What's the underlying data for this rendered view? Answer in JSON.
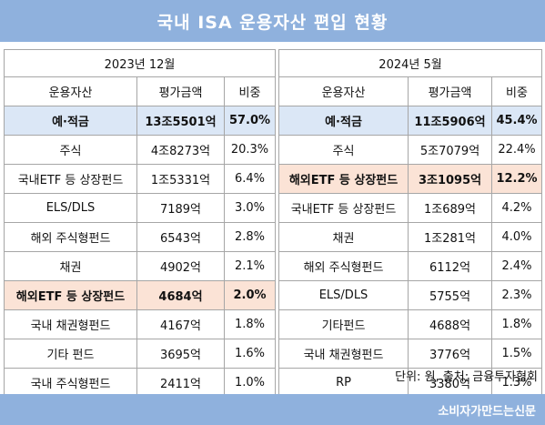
{
  "title": "국내 ISA 운용자산 편입 현황",
  "left": {
    "period": "2023년 12월",
    "headers": [
      "운용자산",
      "평가금액",
      "비중"
    ],
    "rows": [
      {
        "asset": "예·적금",
        "amount": "13조5501억",
        "share": "57.0%",
        "highlight": "blue"
      },
      {
        "asset": "주식",
        "amount": "4조8273억",
        "share": "20.3%",
        "highlight": ""
      },
      {
        "asset": "국내ETF 등 상장펀드",
        "amount": "1조5331억",
        "share": "6.4%",
        "highlight": ""
      },
      {
        "asset": "ELS/DLS",
        "amount": "7189억",
        "share": "3.0%",
        "highlight": ""
      },
      {
        "asset": "해외 주식형펀드",
        "amount": "6543억",
        "share": "2.8%",
        "highlight": ""
      },
      {
        "asset": "채권",
        "amount": "4902억",
        "share": "2.1%",
        "highlight": ""
      },
      {
        "asset": "해외ETF 등 상장펀드",
        "amount": "4684억",
        "share": "2.0%",
        "highlight": "peach"
      },
      {
        "asset": "국내 채권형펀드",
        "amount": "4167억",
        "share": "1.8%",
        "highlight": ""
      },
      {
        "asset": "기타 펀드",
        "amount": "3695억",
        "share": "1.6%",
        "highlight": ""
      },
      {
        "asset": "국내 주식형펀드",
        "amount": "2411억",
        "share": "1.0%",
        "highlight": ""
      }
    ]
  },
  "right": {
    "period": "2024년 5월",
    "headers": [
      "운용자산",
      "평가금액",
      "비중"
    ],
    "rows": [
      {
        "asset": "예·적금",
        "amount": "11조5906억",
        "share": "45.4%",
        "highlight": "blue"
      },
      {
        "asset": "주식",
        "amount": "5조7079억",
        "share": "22.4%",
        "highlight": ""
      },
      {
        "asset": "해외ETF 등 상장펀드",
        "amount": "3조1095억",
        "share": "12.2%",
        "highlight": "peach"
      },
      {
        "asset": "국내ETF 등 상장펀드",
        "amount": "1조689억",
        "share": "4.2%",
        "highlight": ""
      },
      {
        "asset": "채권",
        "amount": "1조281억",
        "share": "4.0%",
        "highlight": ""
      },
      {
        "asset": "해외 주식형펀드",
        "amount": "6112억",
        "share": "2.4%",
        "highlight": ""
      },
      {
        "asset": "ELS/DLS",
        "amount": "5755억",
        "share": "2.3%",
        "highlight": ""
      },
      {
        "asset": "기타펀드",
        "amount": "4688억",
        "share": "1.8%",
        "highlight": ""
      },
      {
        "asset": "국내 채권형펀드",
        "amount": "3776억",
        "share": "1.5%",
        "highlight": ""
      },
      {
        "asset": "RP",
        "amount": "3380억",
        "share": "1.3%",
        "highlight": ""
      }
    ]
  },
  "colors": {
    "title_bar": "#8fb1dd",
    "highlight_blue": "#dbe7f6",
    "highlight_peach": "#fbe3d6"
  },
  "unit_note": "단위: 원, 출처: 금융투자협회",
  "credit": "소비자가만드는신문"
}
